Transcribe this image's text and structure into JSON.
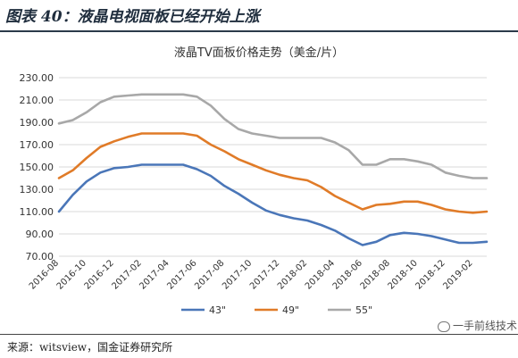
{
  "figure": {
    "title": "图表 40：液晶电视面板已经开始上涨",
    "source": "来源：witsview，国金证券研究所",
    "watermark": "一手前线技术"
  },
  "chart_data": {
    "type": "line",
    "title": "液晶TV面板价格走势（美金/片）",
    "xlabel": "",
    "ylabel": "",
    "x": [
      "2016-08",
      "2016-09",
      "2016-10",
      "2016-11",
      "2016-12",
      "2017-01",
      "2017-02",
      "2017-03",
      "2017-04",
      "2017-05",
      "2017-06",
      "2017-07",
      "2017-08",
      "2017-09",
      "2017-10",
      "2017-11",
      "2017-12",
      "2018-01",
      "2018-02",
      "2018-03",
      "2018-04",
      "2018-05",
      "2018-06",
      "2018-07",
      "2018-08",
      "2018-09",
      "2018-10",
      "2018-11",
      "2018-12",
      "2019-01",
      "2019-02",
      "2019-03"
    ],
    "x_ticks": [
      "2016-08",
      "2016-10",
      "2016-12",
      "2017-02",
      "2017-04",
      "2017-06",
      "2017-08",
      "2017-10",
      "2017-12",
      "2018-02",
      "2018-04",
      "2018-06",
      "2018-08",
      "2018-10",
      "2018-12",
      "2019-02"
    ],
    "ylim": [
      70,
      230
    ],
    "y_ticks": [
      "70.00",
      "90.00",
      "110.00",
      "130.00",
      "150.00",
      "170.00",
      "190.00",
      "210.00",
      "230.00"
    ],
    "grid": true,
    "legend_position": "bottom",
    "series": [
      {
        "name": "43\"",
        "color": "#4a76b8",
        "values": [
          110,
          125,
          137,
          145,
          149,
          150,
          152,
          152,
          152,
          152,
          148,
          142,
          133,
          126,
          118,
          111,
          107,
          104,
          102,
          98,
          93,
          86,
          80,
          83,
          89,
          91,
          90,
          88,
          85,
          82,
          82,
          83
        ]
      },
      {
        "name": "49\"",
        "color": "#e07b28",
        "values": [
          140,
          147,
          158,
          168,
          173,
          177,
          180,
          180,
          180,
          180,
          178,
          170,
          164,
          157,
          152,
          147,
          143,
          140,
          138,
          132,
          124,
          118,
          112,
          116,
          117,
          119,
          119,
          116,
          112,
          110,
          109,
          110
        ]
      },
      {
        "name": "55\"",
        "color": "#a8a8a8",
        "values": [
          189,
          192,
          199,
          208,
          213,
          214,
          215,
          215,
          215,
          215,
          213,
          205,
          193,
          184,
          180,
          178,
          176,
          176,
          176,
          176,
          172,
          165,
          152,
          152,
          157,
          157,
          155,
          152,
          145,
          142,
          140,
          140
        ]
      }
    ]
  }
}
